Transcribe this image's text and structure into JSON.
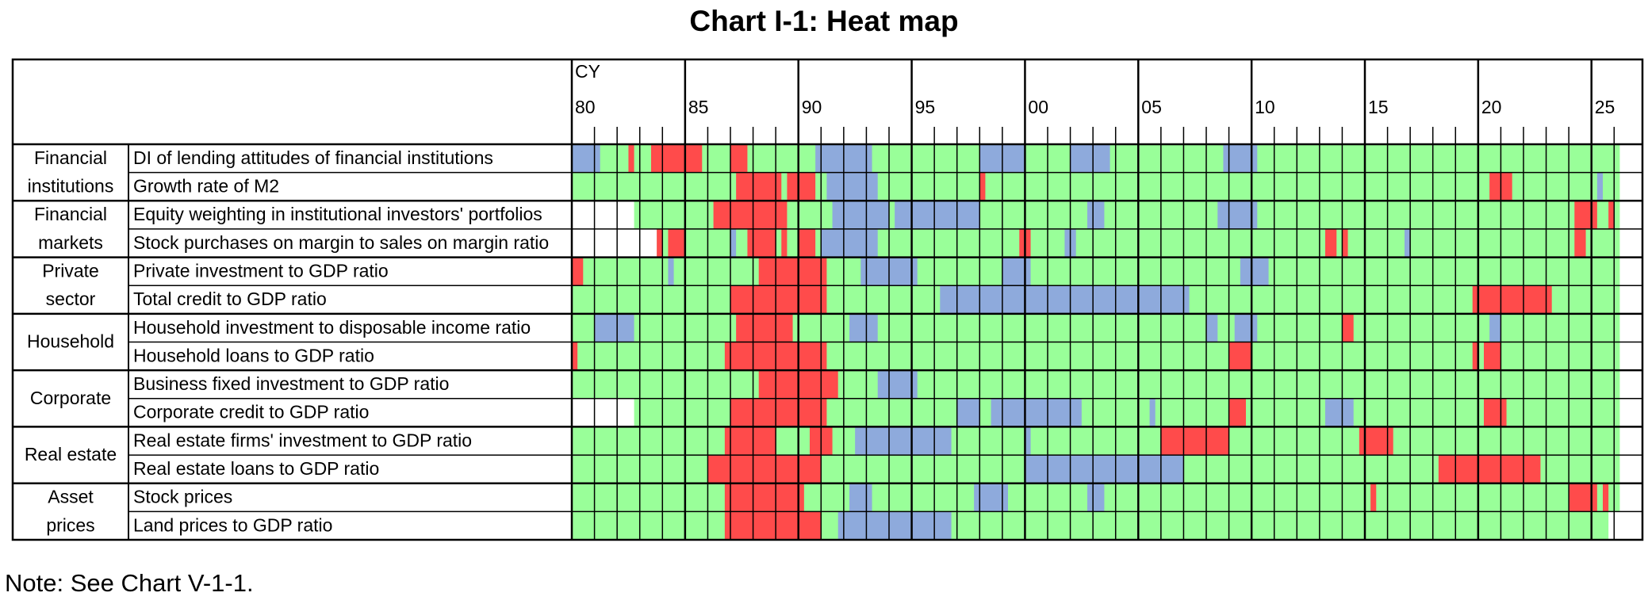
{
  "chart_data": {
    "type": "heatmap",
    "title": "Chart I-1: Heat map",
    "note": "Note: See Chart V-1-1.",
    "x_label": "CY",
    "xlim": [
      1980,
      2027.25
    ],
    "xticks": [
      {
        "value": 1980,
        "label": "80"
      },
      {
        "value": 1985,
        "label": "85"
      },
      {
        "value": 1990,
        "label": "90"
      },
      {
        "value": 1995,
        "label": "95"
      },
      {
        "value": 2000,
        "label": "00"
      },
      {
        "value": 2005,
        "label": "05"
      },
      {
        "value": 2010,
        "label": "10"
      },
      {
        "value": 2015,
        "label": "15"
      },
      {
        "value": 2020,
        "label": "20"
      },
      {
        "value": 2025,
        "label": "25"
      }
    ],
    "minor_xticks": [
      1981,
      1982,
      1983,
      1984,
      1986,
      1987,
      1988,
      1989,
      1991,
      1992,
      1993,
      1994,
      1996,
      1997,
      1998,
      1999,
      2001,
      2002,
      2003,
      2004,
      2006,
      2007,
      2008,
      2009,
      2011,
      2012,
      2013,
      2014,
      2016,
      2017,
      2018,
      2019,
      2021,
      2022,
      2023,
      2024,
      2026
    ],
    "colors": {
      "1": "#ff4b4b",
      "0": "#99ff99",
      "-1": "#8eaadc"
    },
    "groups": [
      {
        "label": [
          "Financial",
          "institutions"
        ],
        "rows": [
          {
            "name": "DI of lending attitudes of financial institutions",
            "start": 1980,
            "end": 2026.25,
            "runs": [
              [
                1980,
                1981.25,
                -1
              ],
              [
                1982.5,
                1982.75,
                1
              ],
              [
                1983.5,
                1985.75,
                1
              ],
              [
                1987,
                1987.75,
                1
              ],
              [
                1990.75,
                1993.25,
                -1
              ],
              [
                1998,
                2000,
                -1
              ],
              [
                2002,
                2003.75,
                -1
              ],
              [
                2008.75,
                2010.25,
                -1
              ]
            ]
          },
          {
            "name": "Growth rate of M2",
            "start": 1980,
            "end": 2026.25,
            "runs": [
              [
                1987.25,
                1989.25,
                1
              ],
              [
                1989.5,
                1990.75,
                1
              ],
              [
                1991.25,
                1993.5,
                -1
              ],
              [
                1998,
                1998.25,
                1
              ],
              [
                2020.5,
                2021.5,
                1
              ],
              [
                2025.25,
                2025.5,
                -1
              ]
            ]
          }
        ]
      },
      {
        "label": [
          "Financial",
          "markets"
        ],
        "rows": [
          {
            "name": "Equity weighting in institutional investors' portfolios",
            "start": 1982.75,
            "end": 2026.25,
            "runs": [
              [
                1986.25,
                1989.5,
                1
              ],
              [
                1991.5,
                1994,
                -1
              ],
              [
                1994.25,
                1998,
                -1
              ],
              [
                2002.75,
                2003.5,
                -1
              ],
              [
                2008.5,
                2010.25,
                -1
              ],
              [
                2024.25,
                2025.25,
                1
              ],
              [
                2025.75,
                2026,
                1
              ]
            ]
          },
          {
            "name": "Stock purchases on margin to sales on margin ratio",
            "start": 1983.75,
            "end": 2026.25,
            "runs": [
              [
                1983.75,
                1984,
                1
              ],
              [
                1984.25,
                1985,
                1
              ],
              [
                1987,
                1987.25,
                -1
              ],
              [
                1987.75,
                1989,
                1
              ],
              [
                1989.25,
                1989.5,
                1
              ],
              [
                1990,
                1990.75,
                1
              ],
              [
                1991,
                1993.5,
                -1
              ],
              [
                1999.75,
                2000.25,
                1
              ],
              [
                2001.75,
                2002.25,
                -1
              ],
              [
                2013.25,
                2013.75,
                1
              ],
              [
                2014,
                2014.25,
                1
              ],
              [
                2016.75,
                2017,
                -1
              ],
              [
                2024.25,
                2024.75,
                1
              ]
            ]
          }
        ]
      },
      {
        "label": [
          "Private",
          "sector"
        ],
        "rows": [
          {
            "name": "Private investment to GDP ratio",
            "start": 1980,
            "end": 2026.25,
            "runs": [
              [
                1980,
                1980.5,
                1
              ],
              [
                1984.25,
                1984.5,
                -1
              ],
              [
                1988.25,
                1991.25,
                1
              ],
              [
                1992.75,
                1995.25,
                -1
              ],
              [
                1999,
                2000.25,
                -1
              ],
              [
                2009.5,
                2010.75,
                -1
              ]
            ]
          },
          {
            "name": "Total credit to GDP ratio",
            "start": 1980,
            "end": 2026.25,
            "runs": [
              [
                1987,
                1991.25,
                1
              ],
              [
                1996.25,
                2007.25,
                -1
              ],
              [
                2019.75,
                2023.25,
                1
              ]
            ]
          }
        ]
      },
      {
        "label": [
          "Household"
        ],
        "rows": [
          {
            "name": "Household investment to disposable income ratio",
            "start": 1980,
            "end": 2026.25,
            "runs": [
              [
                1981,
                1982.75,
                -1
              ],
              [
                1987.25,
                1989.75,
                1
              ],
              [
                1992.25,
                1993.5,
                -1
              ],
              [
                2008,
                2008.5,
                -1
              ],
              [
                2009.25,
                2010.25,
                -1
              ],
              [
                2014,
                2014.5,
                1
              ],
              [
                2020.5,
                2021,
                -1
              ]
            ]
          },
          {
            "name": "Household loans to GDP ratio",
            "start": 1980,
            "end": 2026.25,
            "runs": [
              [
                1980,
                1980.25,
                1
              ],
              [
                1986.75,
                1991.25,
                1
              ],
              [
                2009,
                2010,
                1
              ],
              [
                2019.75,
                2020,
                1
              ],
              [
                2020.25,
                2021,
                1
              ]
            ]
          }
        ]
      },
      {
        "label": [
          "Corporate"
        ],
        "rows": [
          {
            "name": "Business fixed investment to GDP ratio",
            "start": 1980,
            "end": 2026.25,
            "runs": [
              [
                1988.25,
                1991.75,
                1
              ],
              [
                1993.5,
                1995.25,
                -1
              ]
            ]
          },
          {
            "name": "Corporate credit to GDP ratio",
            "start": 1982.75,
            "end": 2026.25,
            "runs": [
              [
                1987,
                1991.25,
                1
              ],
              [
                1997,
                1998,
                -1
              ],
              [
                1998.5,
                2002.5,
                -1
              ],
              [
                2005.5,
                2005.75,
                -1
              ],
              [
                2009,
                2009.75,
                1
              ],
              [
                2013.25,
                2014.5,
                -1
              ],
              [
                2020.25,
                2021.25,
                1
              ]
            ]
          }
        ]
      },
      {
        "label": [
          "Real estate"
        ],
        "rows": [
          {
            "name": "Real estate firms' investment to GDP ratio",
            "start": 1980,
            "end": 2026.25,
            "runs": [
              [
                1986.75,
                1989,
                1
              ],
              [
                1990.5,
                1991.5,
                1
              ],
              [
                1992.5,
                1996.75,
                -1
              ],
              [
                2000,
                2000.25,
                -1
              ],
              [
                2006,
                2009,
                1
              ],
              [
                2014.75,
                2016.25,
                1
              ]
            ]
          },
          {
            "name": "Real estate loans to GDP ratio",
            "start": 1980,
            "end": 2026.25,
            "runs": [
              [
                1986,
                1991,
                1
              ],
              [
                2000,
                2007,
                -1
              ],
              [
                2018.25,
                2022.75,
                1
              ]
            ]
          }
        ]
      },
      {
        "label": [
          "Asset",
          "prices"
        ],
        "rows": [
          {
            "name": "Stock prices",
            "start": 1980,
            "end": 2026.25,
            "runs": [
              [
                1986.75,
                1990.25,
                1
              ],
              [
                1992.25,
                1993.25,
                -1
              ],
              [
                1997.75,
                1999.25,
                -1
              ],
              [
                2002.75,
                2003.5,
                -1
              ],
              [
                2015.25,
                2015.5,
                1
              ],
              [
                2024,
                2025.25,
                1
              ],
              [
                2025.5,
                2025.75,
                1
              ]
            ]
          },
          {
            "name": "Land prices to GDP ratio",
            "start": 1980,
            "end": 2025.75,
            "runs": [
              [
                1986.75,
                1991,
                1
              ],
              [
                1991.75,
                1996.75,
                -1
              ]
            ]
          }
        ]
      }
    ]
  }
}
